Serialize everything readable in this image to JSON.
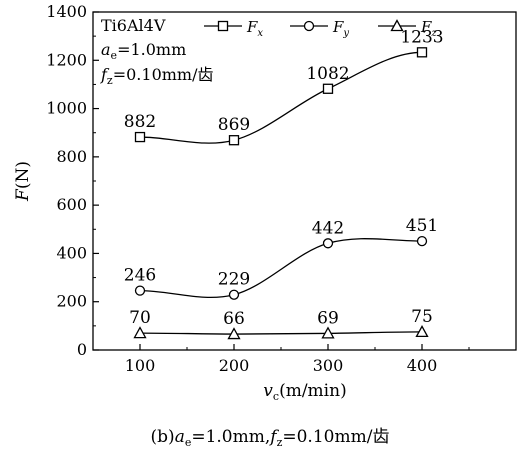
{
  "chart_data": {
    "type": "line",
    "x": [
      100,
      200,
      300,
      400
    ],
    "series": [
      {
        "name": "Fx",
        "marker": "square",
        "values": [
          882,
          869,
          1082,
          1233
        ],
        "labels": [
          "882",
          "869",
          "1082",
          "1233"
        ]
      },
      {
        "name": "Fy",
        "marker": "circle",
        "values": [
          246,
          229,
          442,
          451
        ],
        "labels": [
          "246",
          "229",
          "442",
          "451"
        ]
      },
      {
        "name": "Fz",
        "marker": "triangle",
        "values": [
          70,
          66,
          69,
          75
        ],
        "labels": [
          "70",
          "66",
          "69",
          "75"
        ]
      }
    ],
    "xlim": [
      50,
      500
    ],
    "ylim": [
      0,
      1400
    ],
    "xticks": [
      "100",
      "200",
      "300",
      "400"
    ],
    "yticks": [
      "0",
      "200",
      "400",
      "600",
      "800",
      "1000",
      "1200",
      "1400"
    ],
    "xlabel": {
      "main": "v",
      "sub": "c",
      "unit": "(m/min)"
    },
    "ylabel": {
      "main": "F",
      "unit": "(N)"
    },
    "conditions": {
      "material": "Ti6Al4V",
      "line2": {
        "main": "a",
        "sub": "e",
        "rest": "=1.0mm"
      },
      "line3": {
        "main": "f",
        "sub": "z",
        "rest": "=0.10mm/齿"
      }
    },
    "legend_position": "top",
    "grid": false,
    "caption": {
      "prefix": "(b)",
      "a": "a",
      "a_sub": "e",
      "a_rest": "=1.0mm,",
      "f": "f",
      "f_sub": "z",
      "f_rest": "=0.10mm/齿"
    }
  }
}
